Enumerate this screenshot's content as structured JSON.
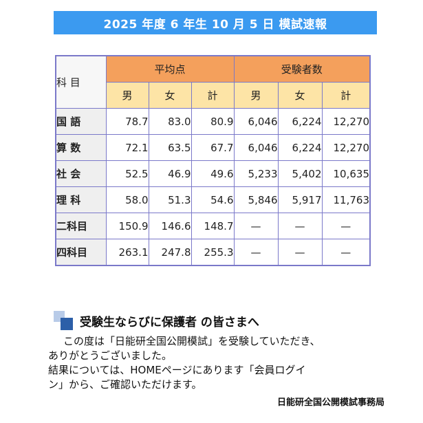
{
  "title": "2025 年度 6 年生 10 月 5 日 模試速報",
  "table": {
    "subject_header": "科 目",
    "group_headers": [
      "平均点",
      "受験者数"
    ],
    "sub_headers": [
      "男",
      "女",
      "計",
      "男",
      "女",
      "計"
    ],
    "rows": [
      {
        "subject": "国 語",
        "values": [
          "78.7",
          "83.0",
          "80.9",
          "6,046",
          "6,224",
          "12,270"
        ]
      },
      {
        "subject": "算 数",
        "values": [
          "72.1",
          "63.5",
          "67.7",
          "6,046",
          "6,224",
          "12,270"
        ]
      },
      {
        "subject": "社 会",
        "values": [
          "52.5",
          "46.9",
          "49.6",
          "5,233",
          "5,402",
          "10,635"
        ]
      },
      {
        "subject": "理 科",
        "values": [
          "58.0",
          "51.3",
          "54.6",
          "5,846",
          "5,917",
          "11,763"
        ]
      },
      {
        "subject": "二科目",
        "values": [
          "150.9",
          "146.6",
          "148.7",
          "—",
          "—",
          "—"
        ]
      },
      {
        "subject": "四科目",
        "values": [
          "263.1",
          "247.8",
          "255.3",
          "—",
          "—",
          "—"
        ]
      }
    ]
  },
  "notice": {
    "title": "受験生ならびに保護者 の皆さまへ",
    "lines": [
      "この度は「日能研全国公開模試」を受験していただき、",
      "ありがとうございました。",
      "結果については、HOMEページにあります「会員ログイ",
      "ン」から、ご確認いただけます。"
    ],
    "signature": "日能研全国公開模試事務局"
  }
}
